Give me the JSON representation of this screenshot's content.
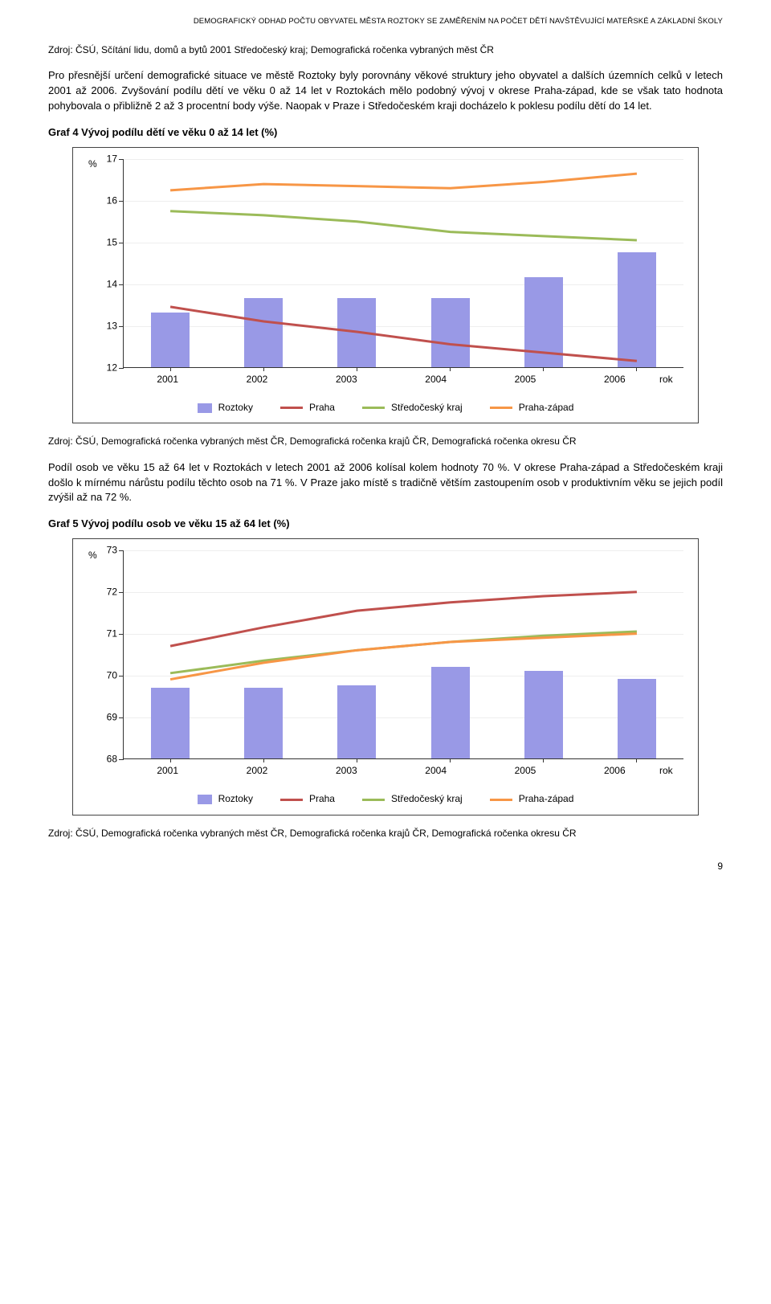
{
  "header": "DEMOGRAFICKÝ ODHAD POČTU OBYVATEL MĚSTA ROZTOKY SE ZAMĚŘENÍM NA POČET DĚTÍ NAVŠTĚVUJÍCÍ MATEŘSKÉ A ZÁKLADNÍ ŠKOLY",
  "source1": "Zdroj: ČSÚ, Sčítání lidu, domů a bytů 2001 Středočeský kraj; Demografická ročenka vybraných měst ČR",
  "para1": "Pro přesnější určení demografické situace ve městě Roztoky byly porovnány věkové struktury jeho obyvatel a dalších územních celků v letech 2001 až 2006. Zvyšování podílu dětí ve věku 0 až 14 let v Roztokách mělo podobný vývoj v okrese Praha-západ, kde se však tato hodnota pohybovala o přibližně 2 až 3 procentní body výše. Naopak v Praze i Středočeském kraji docházelo k poklesu podílu dětí do 14 let.",
  "graf4": {
    "title": "Graf 4  Vývoj podílu dětí ve věku 0 až 14 let (%)",
    "y_unit": "%",
    "x_unit": "rok",
    "ymin": 12,
    "ymax": 17,
    "ystep": 1,
    "categories": [
      "2001",
      "2002",
      "2003",
      "2004",
      "2005",
      "2006"
    ],
    "bars": [
      13.3,
      13.65,
      13.65,
      13.65,
      14.15,
      14.75
    ],
    "series": {
      "Praha": {
        "color": "#c0504d",
        "values": [
          13.45,
          13.1,
          12.85,
          12.55,
          12.35,
          12.15
        ]
      },
      "Středočeský": {
        "color": "#9bbb59",
        "values": [
          15.75,
          15.65,
          15.5,
          15.25,
          15.15,
          15.05
        ]
      },
      "PrahaZapad": {
        "color": "#f79646",
        "values": [
          16.25,
          16.4,
          16.35,
          16.3,
          16.45,
          16.65
        ]
      }
    },
    "legend": [
      {
        "kind": "box",
        "color": "#9999e6",
        "label": "Roztoky"
      },
      {
        "kind": "line",
        "color": "#c0504d",
        "label": "Praha"
      },
      {
        "kind": "line",
        "color": "#9bbb59",
        "label": "Středočeský kraj"
      },
      {
        "kind": "line",
        "color": "#f79646",
        "label": "Praha-západ"
      }
    ]
  },
  "source2": "Zdroj: ČSÚ, Demografická ročenka vybraných měst ČR, Demografická ročenka krajů ČR, Demografická ročenka okresu ČR",
  "para2": "Podíl osob ve věku 15 až 64 let v Roztokách v letech 2001 až 2006 kolísal kolem hodnoty 70 %. V okrese Praha-západ a Středočeském kraji došlo k mírnému nárůstu podílu těchto osob na 71 %. V Praze jako místě s tradičně větším zastoupením osob v produktivním věku se jejich podíl zvýšil až na 72 %.",
  "graf5": {
    "title": "Graf 5  Vývoj podílu osob ve věku 15 až 64 let (%)",
    "y_unit": "%",
    "x_unit": "rok",
    "ymin": 68,
    "ymax": 73,
    "ystep": 1,
    "categories": [
      "2001",
      "2002",
      "2003",
      "2004",
      "2005",
      "2006"
    ],
    "bars": [
      69.7,
      69.7,
      69.75,
      70.2,
      70.1,
      69.9
    ],
    "series": {
      "Praha": {
        "color": "#c0504d",
        "values": [
          70.7,
          71.15,
          71.55,
          71.75,
          71.9,
          72.0
        ]
      },
      "Středočeský": {
        "color": "#9bbb59",
        "values": [
          70.05,
          70.35,
          70.6,
          70.8,
          70.95,
          71.05
        ]
      },
      "PrahaZapad": {
        "color": "#f79646",
        "values": [
          69.9,
          70.3,
          70.6,
          70.8,
          70.9,
          71.0
        ]
      }
    },
    "legend": [
      {
        "kind": "box",
        "color": "#9999e6",
        "label": "Roztoky"
      },
      {
        "kind": "line",
        "color": "#c0504d",
        "label": "Praha"
      },
      {
        "kind": "line",
        "color": "#9bbb59",
        "label": "Středočeský kraj"
      },
      {
        "kind": "line",
        "color": "#f79646",
        "label": "Praha-západ"
      }
    ]
  },
  "source3": "Zdroj: ČSÚ, Demografická ročenka vybraných měst ČR, Demografická ročenka krajů ČR, Demografická ročenka okresu ČR",
  "page_num": "9"
}
